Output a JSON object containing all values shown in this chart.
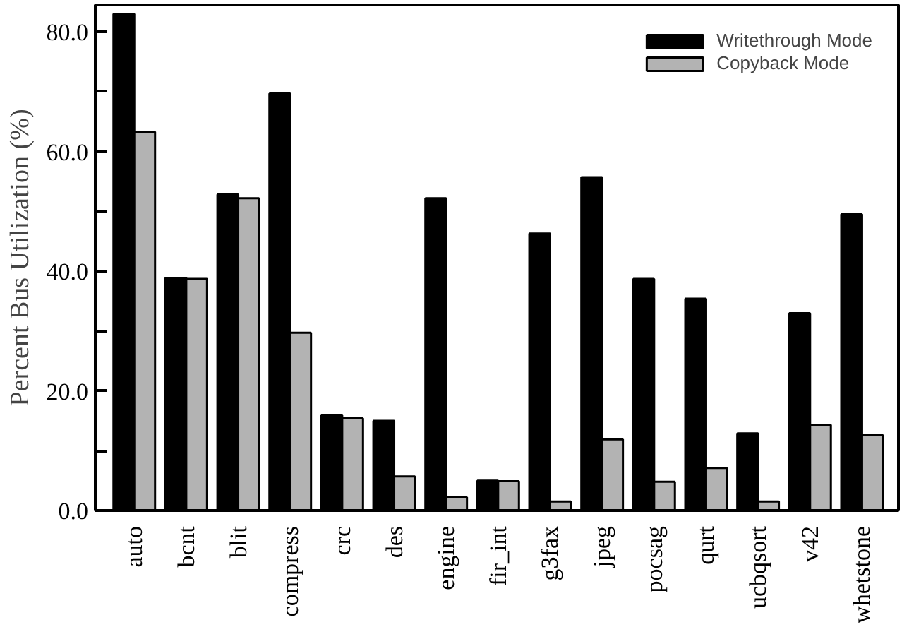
{
  "chart_data": {
    "type": "bar",
    "ylabel": "Percent Bus Utilization (%)",
    "categories": [
      "auto",
      "bcnt",
      "blit",
      "compress",
      "crc",
      "des",
      "engine",
      "fir_int",
      "g3fax",
      "jpeg",
      "pocsag",
      "qurt",
      "ucbqsort",
      "v42",
      "whetstone"
    ],
    "series": [
      {
        "name": "Writethrough Mode",
        "color": "#000000",
        "values": [
          83.0,
          38.9,
          52.8,
          69.7,
          15.9,
          15.0,
          52.2,
          5.0,
          46.3,
          55.7,
          38.7,
          35.4,
          12.9,
          33.0,
          49.5
        ]
      },
      {
        "name": "Copyback Mode",
        "color": "#b3b3b3",
        "values": [
          63.3,
          38.7,
          52.2,
          29.7,
          15.4,
          5.7,
          2.2,
          4.9,
          1.5,
          11.9,
          4.8,
          7.1,
          1.5,
          14.3,
          12.6
        ]
      }
    ],
    "ylim": [
      0,
      84.5
    ],
    "yticks": [
      {
        "value": 0,
        "label": "0.0"
      },
      {
        "value": 10,
        "label": null
      },
      {
        "value": 20,
        "label": "20.0"
      },
      {
        "value": 30,
        "label": null
      },
      {
        "value": 40,
        "label": "40.0"
      },
      {
        "value": 50,
        "label": null
      },
      {
        "value": 60,
        "label": "60.0"
      },
      {
        "value": 70,
        "label": null
      },
      {
        "value": 80,
        "label": "80.0"
      }
    ],
    "grid": false,
    "legend": "top right"
  }
}
